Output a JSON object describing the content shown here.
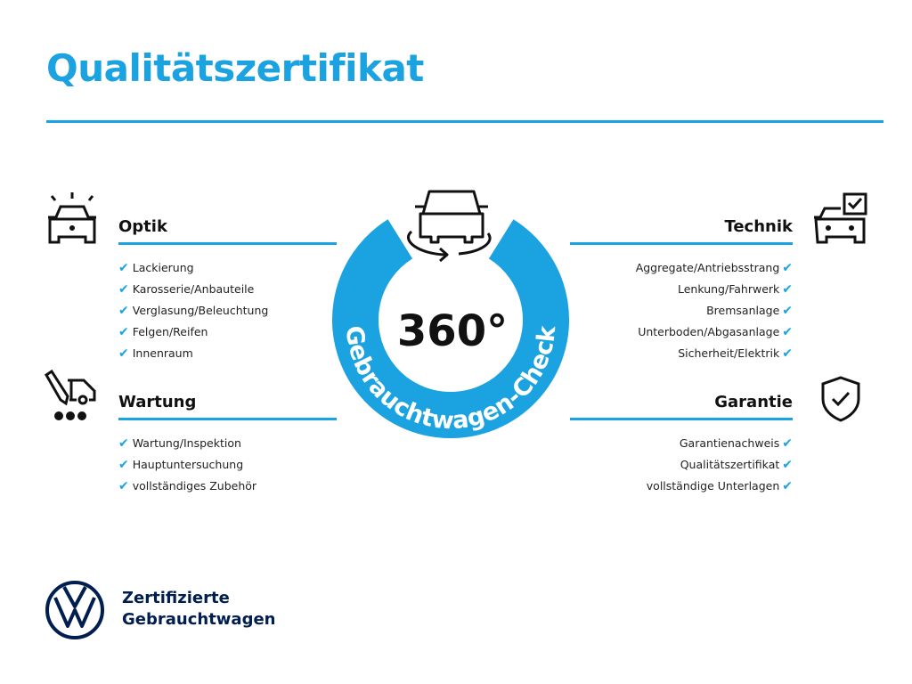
{
  "title": "Qualitätszertifikat",
  "center": {
    "number": "360°",
    "ring_text": "Gebrauchtwagen-Check"
  },
  "sections": {
    "optik": {
      "heading": "Optik",
      "icon": "car-lights-icon",
      "items": [
        "Lackierung",
        "Karosserie/Anbauteile",
        "Verglasung/Beleuchtung",
        "Felgen/Reifen",
        "Innenraum"
      ]
    },
    "wartung": {
      "heading": "Wartung",
      "icon": "car-service-icon",
      "items": [
        "Wartung/Inspektion",
        "Hauptuntersuchung",
        "vollständiges Zubehör"
      ]
    },
    "technik": {
      "heading": "Technik",
      "icon": "car-checkbox-icon",
      "items": [
        "Aggregate/Antriebsstrang",
        "Lenkung/Fahrwerk",
        "Bremsanlage",
        "Unterboden/Abgasanlage",
        "Sicherheit/Elektrik"
      ]
    },
    "garantie": {
      "heading": "Garantie",
      "icon": "shield-check-icon",
      "items": [
        "Garantienachweis",
        "Qualitätszertifikat",
        "vollständige Unterlagen"
      ]
    }
  },
  "check_glyph": "✔",
  "footer": {
    "line1": "Zertifizierte",
    "line2": "Gebrauchtwagen",
    "logo": "VW"
  },
  "colors": {
    "accent": "#1aa3e0",
    "brand": "#001e50"
  }
}
